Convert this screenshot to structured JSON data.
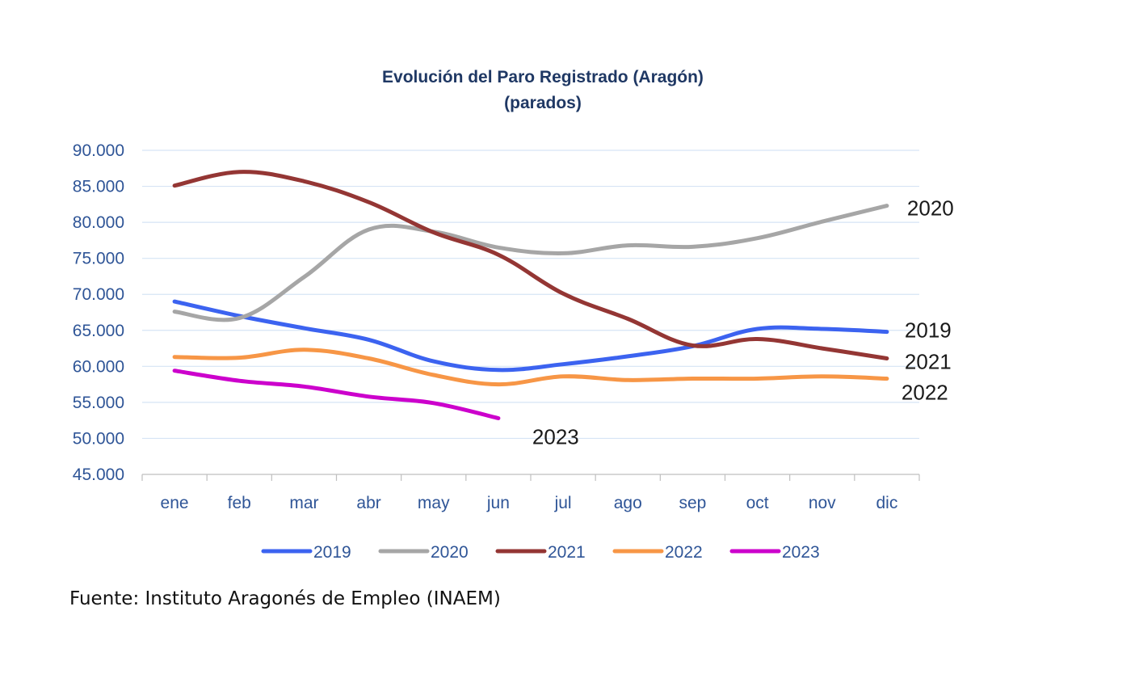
{
  "chart_data": {
    "type": "line",
    "title": [
      "Evolución del Paro Registrado (Aragón)",
      "(parados)"
    ],
    "categories": [
      "ene",
      "feb",
      "mar",
      "abr",
      "may",
      "jun",
      "jul",
      "ago",
      "sep",
      "oct",
      "nov",
      "dic"
    ],
    "ylim": [
      45000,
      90000
    ],
    "yticks": [
      90000,
      85000,
      80000,
      75000,
      70000,
      65000,
      60000,
      55000,
      50000,
      45000
    ],
    "ytick_labels": [
      "90.000",
      "85.000",
      "80.000",
      "75.000",
      "70.000",
      "65.000",
      "60.000",
      "55.000",
      "50.000",
      "45.000"
    ],
    "grid": true,
    "legend_position": "bottom",
    "series": [
      {
        "name": "2019",
        "color": "#3c63f0",
        "values": [
          69000,
          67000,
          65300,
          63700,
          60700,
          59500,
          60300,
          61400,
          62800,
          65200,
          65200,
          64800
        ],
        "end_label": "2019"
      },
      {
        "name": "2020",
        "color": "#a6a6a6",
        "values": [
          67600,
          66700,
          72400,
          79000,
          78700,
          76500,
          75700,
          76800,
          76600,
          77800,
          80100,
          82300
        ],
        "end_label": "2020"
      },
      {
        "name": "2021",
        "color": "#943634",
        "values": [
          85100,
          87000,
          85700,
          82800,
          78600,
          75500,
          70100,
          66600,
          62900,
          63800,
          62500,
          61100
        ],
        "end_label": "2021"
      },
      {
        "name": "2022",
        "color": "#f79646",
        "values": [
          61300,
          61200,
          62300,
          61100,
          58800,
          57500,
          58600,
          58100,
          58300,
          58300,
          58600,
          58300
        ],
        "end_label": "2022"
      },
      {
        "name": "2023",
        "color": "#cc00cc",
        "values": [
          59400,
          58000,
          57200,
          55800,
          54900,
          52800,
          null,
          null,
          null,
          null,
          null,
          null
        ],
        "end_label": "2023"
      }
    ]
  },
  "source": "Fuente: Instituto Aragonés de Empleo (INAEM)"
}
